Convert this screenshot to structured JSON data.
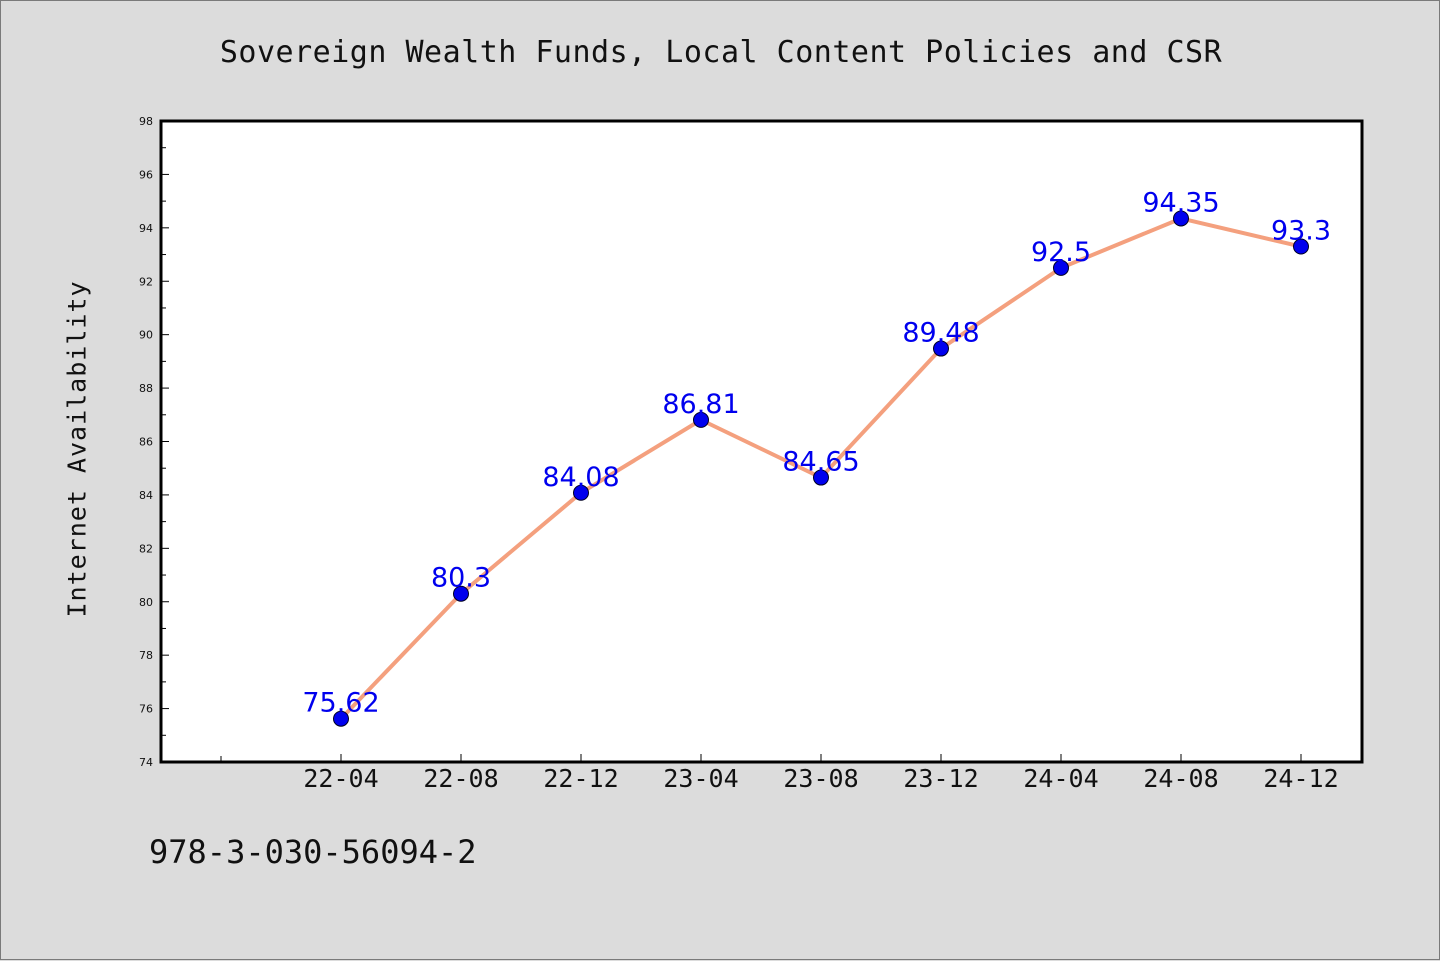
{
  "title": "Sovereign Wealth Funds, Local Content Policies and CSR",
  "footer_text": "978-3-030-56094-2",
  "colors": {
    "background": "#dcdcdc",
    "plot_background": "#ffffff",
    "line": "#f4a07e",
    "marker": "#0000ee",
    "label": "#0000ee"
  },
  "chart_data": {
    "type": "line",
    "title": "Sovereign Wealth Funds, Local Content Policies and CSR",
    "xlabel": "",
    "ylabel": "Internet Availability",
    "x": [
      "22-04",
      "22-08",
      "22-12",
      "23-04",
      "23-08",
      "23-12",
      "24-04",
      "24-08",
      "24-12"
    ],
    "values": [
      75.62,
      80.3,
      84.08,
      86.81,
      84.65,
      89.48,
      92.5,
      94.35,
      93.3
    ],
    "data_labels": [
      "75.62",
      "80.3",
      "84.08",
      "86.81",
      "84.65",
      "89.48",
      "92.5",
      "94.35",
      "93.3"
    ],
    "ylim": [
      74,
      98
    ],
    "yticks": [
      74,
      76,
      78,
      80,
      82,
      84,
      86,
      88,
      90,
      92,
      94,
      96,
      98
    ],
    "grid": false,
    "legend": "none"
  }
}
